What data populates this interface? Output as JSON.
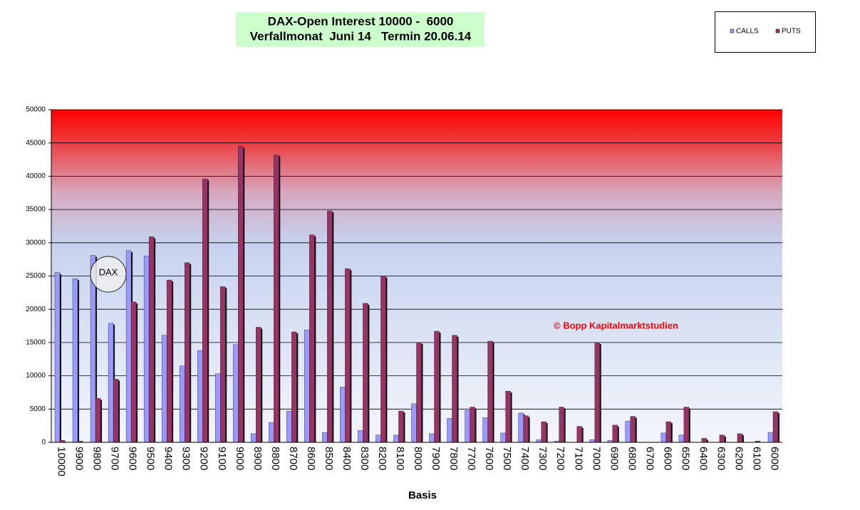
{
  "chart_data": {
    "type": "bar",
    "title": "DAX-Open Interest 10000 -  6000",
    "subtitle": "Verfallmonat  Juni 14   Termin 20.06.14",
    "x_label": "Basis",
    "annotations": [
      "DAX",
      "© Bopp Kapitalmarktstudien"
    ],
    "categories": [
      "10000",
      "9900",
      "9800",
      "9700",
      "9600",
      "9500",
      "9400",
      "9300",
      "9200",
      "9100",
      "9000",
      "8900",
      "8800",
      "8700",
      "8600",
      "8500",
      "8400",
      "8300",
      "8200",
      "8100",
      "8000",
      "7900",
      "7800",
      "7700",
      "7600",
      "7500",
      "7400",
      "7300",
      "7200",
      "7100",
      "7000",
      "6900",
      "6800",
      "6700",
      "6600",
      "6500",
      "6400",
      "6300",
      "6200",
      "6100",
      "6000"
    ],
    "series": [
      {
        "name": "CALLS",
        "color": "#9999ff",
        "values": [
          25500,
          24600,
          28100,
          17900,
          28800,
          28000,
          16100,
          11500,
          13800,
          10300,
          14700,
          1300,
          3000,
          4700,
          16900,
          1500,
          8300,
          1800,
          1100,
          1100,
          5800,
          1300,
          3600,
          4800,
          3700,
          1400,
          4400,
          400,
          200,
          0,
          400,
          300,
          3200,
          0,
          1400,
          1100,
          0,
          0,
          0,
          0,
          1500
        ]
      },
      {
        "name": "PUTS",
        "color": "#993366",
        "values": [
          300,
          200,
          6600,
          9500,
          21100,
          30900,
          24400,
          27000,
          39600,
          23400,
          44500,
          17300,
          43200,
          16600,
          31200,
          34800,
          26100,
          20900,
          25000,
          4700,
          15000,
          16700,
          16100,
          5300,
          15200,
          7700,
          4000,
          3100,
          5300,
          2400,
          15000,
          2600,
          3900,
          0,
          3100,
          5300,
          600,
          1100,
          1300,
          200,
          4600
        ]
      }
    ],
    "ylim": [
      0,
      50000
    ],
    "yticks": [
      0,
      5000,
      10000,
      15000,
      20000,
      25000,
      30000,
      35000,
      40000,
      45000,
      50000
    ],
    "grid": true,
    "legend": "top-right"
  }
}
